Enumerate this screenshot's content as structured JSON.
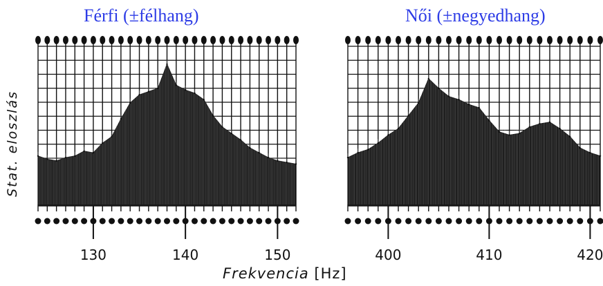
{
  "chart_data": [
    {
      "type": "area",
      "title": "Férfi (±félhang)",
      "xlabel": "Frekvencia",
      "xunit": "[Hz]",
      "ylabel": "Stat. eloszlás",
      "xlim": [
        124,
        152
      ],
      "ylim": [
        0,
        10
      ],
      "xticks": [
        130,
        140,
        150
      ],
      "grid": true,
      "x": [
        124,
        125,
        126,
        127,
        128,
        129,
        130,
        131,
        132,
        133,
        134,
        135,
        136,
        137,
        138,
        139,
        140,
        141,
        142,
        143,
        144,
        145,
        146,
        147,
        148,
        149,
        150,
        151,
        152
      ],
      "values": [
        3.1,
        2.9,
        2.8,
        3.0,
        3.1,
        3.4,
        3.3,
        3.9,
        4.3,
        5.4,
        6.4,
        6.9,
        7.1,
        7.3,
        8.8,
        7.5,
        7.2,
        7.0,
        6.6,
        5.6,
        4.9,
        4.5,
        4.1,
        3.6,
        3.3,
        3.0,
        2.8,
        2.7,
        2.6
      ]
    },
    {
      "type": "area",
      "title": "Női (±negyedhang)",
      "xlabel": "Frekvencia",
      "xunit": "[Hz]",
      "ylabel": "Stat. eloszlás",
      "xlim": [
        396,
        421
      ],
      "ylim": [
        0,
        10
      ],
      "xticks": [
        400,
        410,
        420
      ],
      "grid": true,
      "x": [
        396,
        397,
        398,
        399,
        400,
        401,
        402,
        403,
        404,
        405,
        406,
        407,
        408,
        409,
        410,
        411,
        412,
        413,
        414,
        415,
        416,
        417,
        418,
        419,
        420,
        421
      ],
      "values": [
        3.0,
        3.3,
        3.5,
        3.9,
        4.4,
        4.8,
        5.6,
        6.4,
        7.9,
        7.3,
        6.8,
        6.6,
        6.3,
        6.1,
        5.3,
        4.6,
        4.4,
        4.5,
        4.9,
        5.1,
        5.2,
        4.8,
        4.3,
        3.6,
        3.3,
        3.1
      ]
    }
  ],
  "labels": {
    "title_left": "Férfi (±félhang)",
    "title_right": "Női (±negyedhang)",
    "ylabel": "Stat. eloszlás",
    "xlabel_name": "Frekvencia",
    "xlabel_unit": "[Hz]"
  },
  "colors": {
    "title": "#2d3ce6",
    "ink": "#111111",
    "fill": "#1a1a1a"
  }
}
